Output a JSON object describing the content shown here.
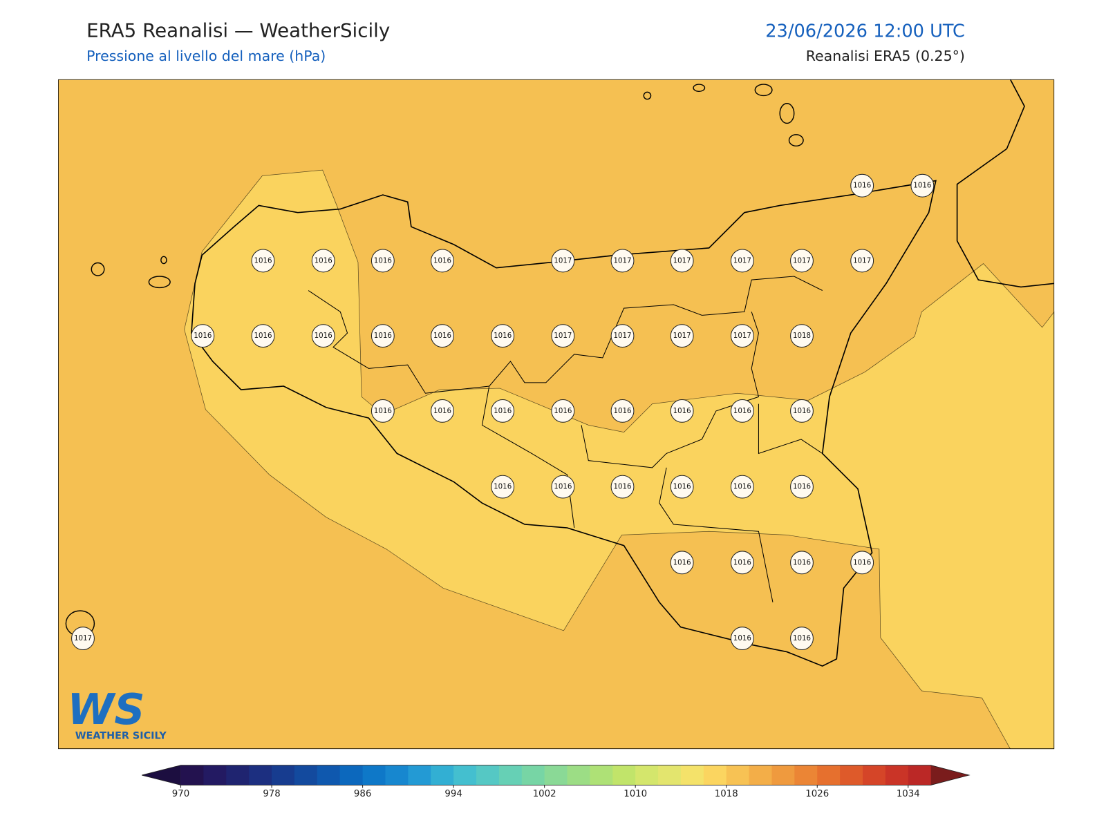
{
  "header": {
    "title": "ERA5 Reanalisi — WeatherSicily",
    "subtitle": "Pressione al livello del mare (hPa)",
    "datetime": "23/06/2026 12:00 UTC",
    "source": "Reanalisi ERA5 (0.25°)"
  },
  "stations": [
    1016,
    1016,
    1016,
    1016,
    1016,
    1016,
    1017,
    1017,
    1017,
    1017,
    1017,
    1017,
    1016,
    1016,
    1016,
    1016,
    1016,
    1016,
    1017,
    1017,
    1017,
    1017,
    1018,
    1016,
    1016,
    1016,
    1016,
    1016,
    1016,
    1016,
    1016,
    1016,
    1016,
    1016,
    1016,
    1016,
    1016,
    1016,
    1016,
    1016,
    1016,
    1017,
    1016,
    1016
  ],
  "colorbar": {
    "lim": [
      970,
      1036
    ],
    "ticks": [
      970,
      978,
      986,
      994,
      1002,
      1010,
      1018,
      1026,
      1034
    ],
    "under": "#1c0e40",
    "over": "#7a1c1c",
    "colors": [
      "#23124f",
      "#231a62",
      "#1f2470",
      "#1c2f80",
      "#173c8f",
      "#134a9e",
      "#0f58ae",
      "#0c68bd",
      "#0e78c8",
      "#1787cf",
      "#239ad4",
      "#32afd3",
      "#44bfcf",
      "#55c8c4",
      "#66d0b5",
      "#77d5a5",
      "#8ad996",
      "#9cdd85",
      "#aee176",
      "#c1e46a",
      "#d4e66c",
      "#e3e56e",
      "#f4e26a",
      "#fbd560",
      "#f7c254",
      "#f3ae48",
      "#ef9a3e",
      "#eb8535",
      "#e6702e",
      "#de5a2a",
      "#d54528",
      "#ca3427",
      "#bb2826"
    ]
  },
  "logo": {
    "mark": "WS",
    "name": "WEATHER SICILY"
  }
}
